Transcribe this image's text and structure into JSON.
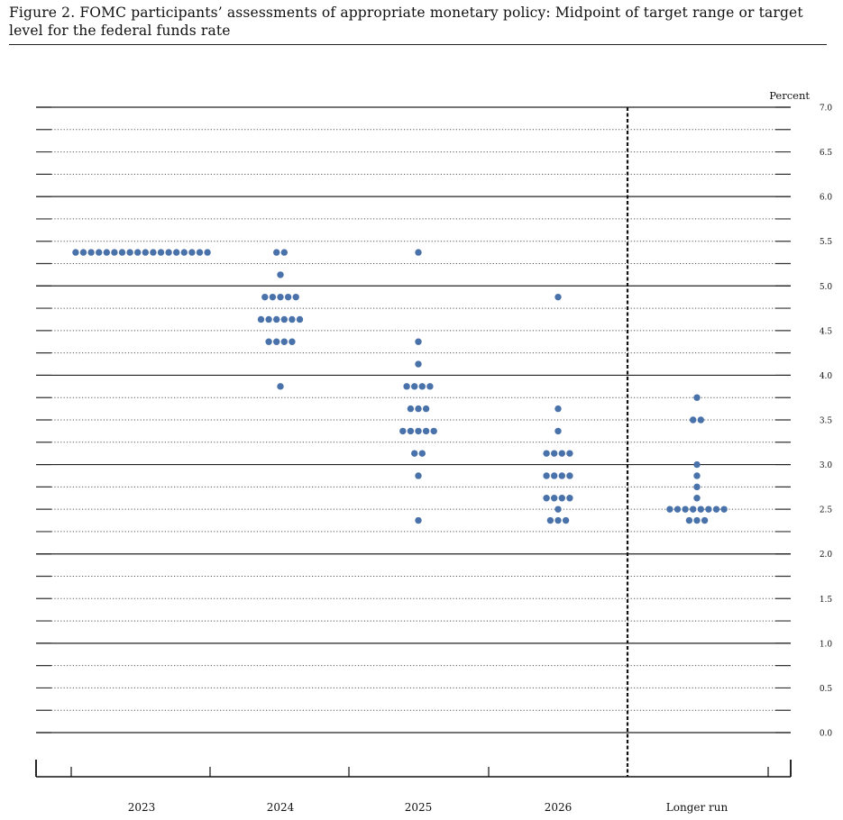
{
  "figure": {
    "title": "Figure 2.  FOMC participants’ assessments of appropriate monetary policy:  Midpoint of target range or target level for the federal funds rate"
  },
  "chart_data": {
    "type": "scatter",
    "title": "Figure 2.  FOMC participants’ assessments of appropriate monetary policy:  Midpoint of target range or target level for the federal funds rate",
    "ylabel": "Percent",
    "ylim": [
      0,
      7
    ],
    "y_ticks": [
      {
        "value": 0,
        "label": "0.0"
      },
      {
        "value": 0.5,
        "label": "0.5"
      },
      {
        "value": 1,
        "label": "1.0"
      },
      {
        "value": 1.5,
        "label": "1.5"
      },
      {
        "value": 2,
        "label": "2.0"
      },
      {
        "value": 2.5,
        "label": "2.5"
      },
      {
        "value": 3,
        "label": "3.0"
      },
      {
        "value": 3.5,
        "label": "3.5"
      },
      {
        "value": 4,
        "label": "4.0"
      },
      {
        "value": 4.5,
        "label": "4.5"
      },
      {
        "value": 5,
        "label": "5.0"
      },
      {
        "value": 5.5,
        "label": "5.5"
      },
      {
        "value": 6,
        "label": "6.0"
      },
      {
        "value": 6.5,
        "label": "6.5"
      },
      {
        "value": 7,
        "label": "7.0"
      }
    ],
    "grid_step": 0.25,
    "categories": [
      "2023",
      "2024",
      "2025",
      "2026",
      "Longer run"
    ],
    "dot_color": "#4a72aa",
    "series": [
      {
        "category": "2023",
        "points": [
          {
            "y": 5.375,
            "count": 18
          }
        ]
      },
      {
        "category": "2024",
        "points": [
          {
            "y": 5.375,
            "count": 2
          },
          {
            "y": 5.125,
            "count": 1
          },
          {
            "y": 4.875,
            "count": 5
          },
          {
            "y": 4.625,
            "count": 6
          },
          {
            "y": 4.375,
            "count": 4
          },
          {
            "y": 3.875,
            "count": 1
          }
        ]
      },
      {
        "category": "2025",
        "points": [
          {
            "y": 5.375,
            "count": 1
          },
          {
            "y": 4.375,
            "count": 1
          },
          {
            "y": 4.125,
            "count": 1
          },
          {
            "y": 3.875,
            "count": 4
          },
          {
            "y": 3.625,
            "count": 3
          },
          {
            "y": 3.375,
            "count": 5
          },
          {
            "y": 3.125,
            "count": 2
          },
          {
            "y": 2.875,
            "count": 1
          },
          {
            "y": 2.375,
            "count": 1
          }
        ]
      },
      {
        "category": "2026",
        "points": [
          {
            "y": 4.875,
            "count": 1
          },
          {
            "y": 3.625,
            "count": 1
          },
          {
            "y": 3.375,
            "count": 1
          },
          {
            "y": 3.125,
            "count": 4
          },
          {
            "y": 2.875,
            "count": 4
          },
          {
            "y": 2.625,
            "count": 4
          },
          {
            "y": 2.5,
            "count": 1
          },
          {
            "y": 2.375,
            "count": 3
          }
        ]
      },
      {
        "category": "Longer run",
        "points": [
          {
            "y": 3.75,
            "count": 1
          },
          {
            "y": 3.5,
            "count": 2
          },
          {
            "y": 3.0,
            "count": 1
          },
          {
            "y": 2.875,
            "count": 1
          },
          {
            "y": 2.75,
            "count": 1
          },
          {
            "y": 2.625,
            "count": 1
          },
          {
            "y": 2.5,
            "count": 8
          },
          {
            "y": 2.375,
            "count": 3
          }
        ]
      }
    ]
  }
}
